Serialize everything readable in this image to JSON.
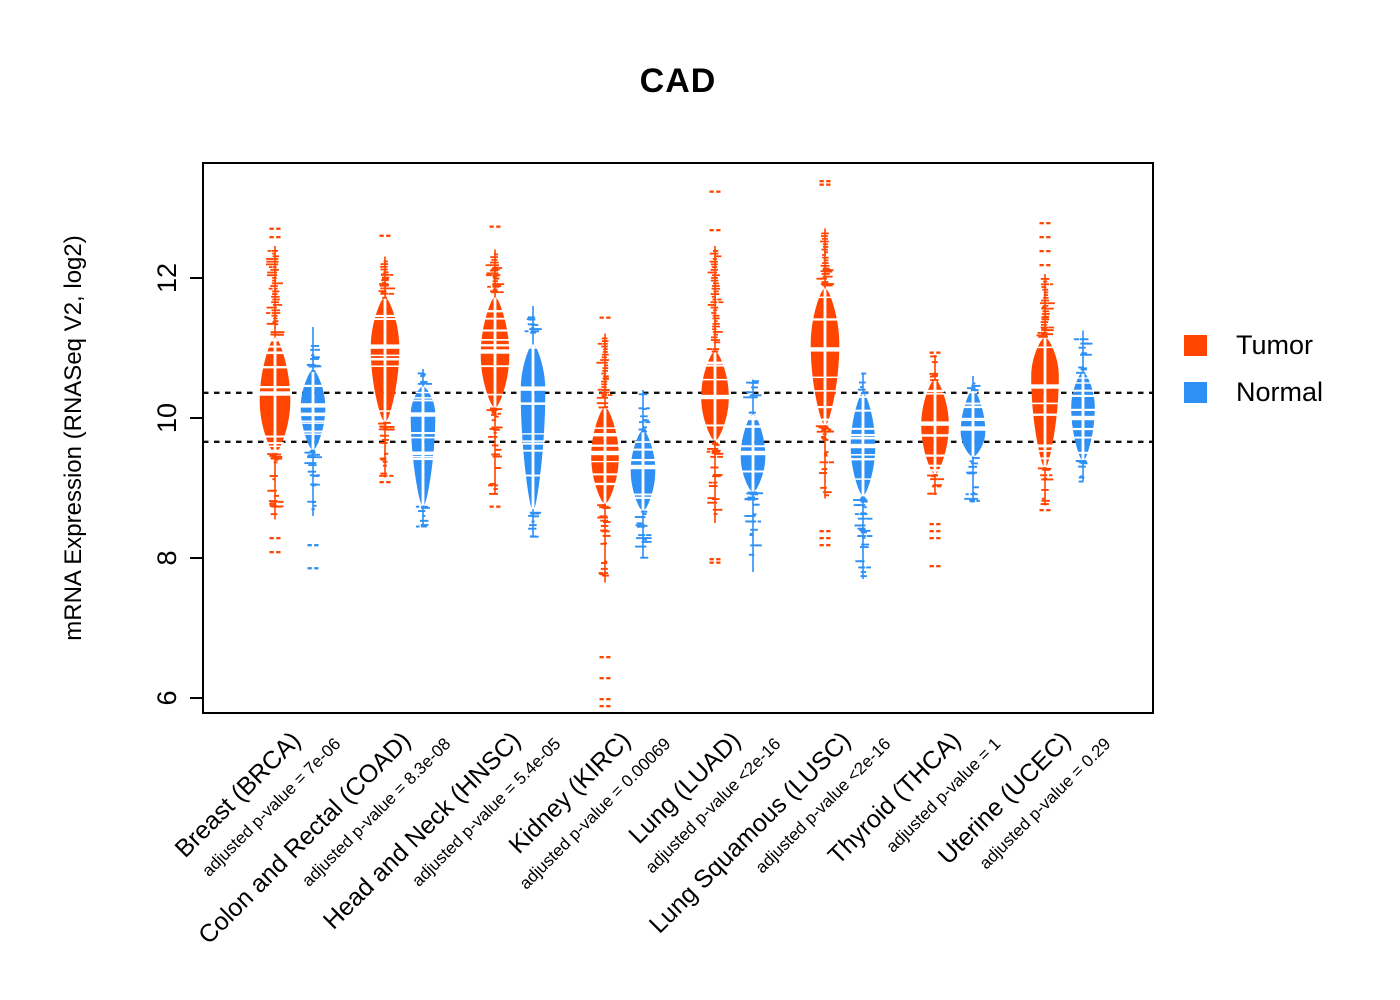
{
  "title": "CAD",
  "y_axis": {
    "label": "mRNA Expression (RNASeq V2, log2)"
  },
  "legend": {
    "items": [
      {
        "label": "Tumor",
        "color": "#FF4500"
      },
      {
        "label": "Normal",
        "color": "#2E90F5"
      }
    ]
  },
  "chart_data": {
    "type": "violin",
    "title": "CAD",
    "ylabel": "mRNA Expression (RNASeq V2, log2)",
    "yticks": [
      6,
      8,
      10,
      12
    ],
    "ylim": [
      5.786,
      13.643
    ],
    "grid": false,
    "legend_position": "right",
    "reference_lines": {
      "style": "dashed",
      "color": "#111111",
      "values": [
        10.36,
        9.66
      ]
    },
    "series_colors": {
      "tumor": "#FF4500",
      "normal": "#2E90F5"
    },
    "groups": [
      {
        "id": "brca",
        "label": "Breast (BRCA)",
        "pvalue": "adjusted p-value = 7e-06",
        "tumor": {
          "median": 10.35,
          "body": [
            9.5,
            11.15
          ],
          "peak": 10.25,
          "hw": 14,
          "tail": [
            8.55,
            11.45
          ],
          "stack": [
            11.35,
            12.4
          ],
          "outliers": [
            12.72,
            12.6,
            8.3,
            8.1
          ]
        },
        "normal": {
          "median": 10.18,
          "body": [
            9.55,
            10.68
          ],
          "peak": 10.15,
          "hw": 11,
          "tail": [
            8.6,
            11.3
          ],
          "outliers": [
            8.2,
            7.87
          ]
        }
      },
      {
        "id": "coad",
        "label": "Colon and Rectal (COAD)",
        "pvalue": "adjusted p-value = 8.3e-08",
        "tumor": {
          "median": 11.02,
          "body": [
            9.95,
            11.72
          ],
          "peak": 11.0,
          "hw": 13,
          "tail": [
            9.15,
            12.1
          ],
          "stack": [
            11.75,
            12.25
          ],
          "outliers": [
            12.62,
            9.1
          ]
        },
        "normal": {
          "median": 10.05,
          "body": [
            8.75,
            10.45
          ],
          "peak": 10.05,
          "hw": 11,
          "tail": [
            8.45,
            10.7
          ],
          "outliers": []
        }
      },
      {
        "id": "hnsc",
        "label": "Head and Neck (HNSC)",
        "pvalue": "adjusted p-value = 5.4e-05",
        "tumor": {
          "median": 10.95,
          "body": [
            10.15,
            11.72
          ],
          "peak": 10.9,
          "hw": 13,
          "tail": [
            8.9,
            12.2
          ],
          "stack": [
            11.8,
            12.35
          ],
          "outliers": [
            12.75,
            8.75
          ]
        },
        "normal": {
          "median": 10.42,
          "body": [
            8.7,
            11.05
          ],
          "peak": 10.4,
          "hw": 11,
          "tail": [
            8.3,
            11.6
          ],
          "outliers": []
        }
      },
      {
        "id": "kirc",
        "label": "Kidney (KIRC)",
        "pvalue": "adjusted p-value = 0.00069",
        "tumor": {
          "median": 9.5,
          "body": [
            8.78,
            10.15
          ],
          "peak": 9.45,
          "hw": 12.5,
          "tail": [
            7.65,
            10.6
          ],
          "stack": [
            10.3,
            11.15
          ],
          "outliers": [
            11.45,
            6.6,
            6.3,
            6.0,
            5.9
          ]
        },
        "normal": {
          "median": 9.3,
          "body": [
            8.68,
            9.82
          ],
          "peak": 9.25,
          "hw": 11,
          "tail": [
            8.0,
            10.4
          ],
          "outliers": []
        }
      },
      {
        "id": "luad",
        "label": "Lung (LUAD)",
        "pvalue": "adjusted p-value <2e-16",
        "tumor": {
          "median": 10.3,
          "body": [
            9.68,
            10.95
          ],
          "peak": 10.3,
          "hw": 12.5,
          "tail": [
            8.5,
            11.1
          ],
          "stack": [
            11.1,
            12.4
          ],
          "outliers": [
            13.25,
            12.7,
            8.0,
            7.95
          ]
        },
        "normal": {
          "median": 9.5,
          "body": [
            8.95,
            10.05
          ],
          "peak": 9.45,
          "hw": 11,
          "tail": [
            7.8,
            10.55
          ],
          "outliers": []
        }
      },
      {
        "id": "lusc",
        "label": "Lung Squamous (LUSC)",
        "pvalue": "adjusted p-value <2e-16",
        "tumor": {
          "median": 10.98,
          "body": [
            9.9,
            11.85
          ],
          "peak": 11.05,
          "hw": 13,
          "tail": [
            8.85,
            12.15
          ],
          "stack": [
            12.0,
            12.65
          ],
          "outliers": [
            13.4,
            13.35,
            8.4,
            8.3,
            8.2
          ]
        },
        "normal": {
          "median": 9.6,
          "body": [
            8.9,
            10.35
          ],
          "peak": 9.6,
          "hw": 11,
          "tail": [
            7.7,
            10.65
          ],
          "outliers": []
        }
      },
      {
        "id": "thca",
        "label": "Thyroid (THCA)",
        "pvalue": "adjusted p-value = 1",
        "tumor": {
          "median": 9.92,
          "body": [
            9.2,
            10.55
          ],
          "peak": 9.9,
          "hw": 12.5,
          "tail": [
            8.9,
            10.9
          ],
          "outliers": [
            10.95,
            8.5,
            8.4,
            8.3,
            7.9
          ]
        },
        "normal": {
          "median": 9.85,
          "body": [
            9.45,
            10.4
          ],
          "peak": 9.8,
          "hw": 11,
          "tail": [
            8.8,
            10.6
          ],
          "outliers": []
        }
      },
      {
        "id": "ucec",
        "label": "Uterine (UCEC)",
        "pvalue": "adjusted p-value = 0.29",
        "tumor": {
          "median": 10.45,
          "body": [
            9.3,
            11.15
          ],
          "peak": 10.6,
          "hw": 12.5,
          "tail": [
            8.75,
            11.6
          ],
          "stack": [
            11.2,
            12.0
          ],
          "outliers": [
            12.8,
            12.6,
            12.4,
            12.2,
            8.7
          ]
        },
        "normal": {
          "median": 10.0,
          "body": [
            9.4,
            10.65
          ],
          "peak": 10.15,
          "hw": 10.5,
          "tail": [
            9.1,
            11.25
          ],
          "outliers": []
        }
      }
    ]
  }
}
